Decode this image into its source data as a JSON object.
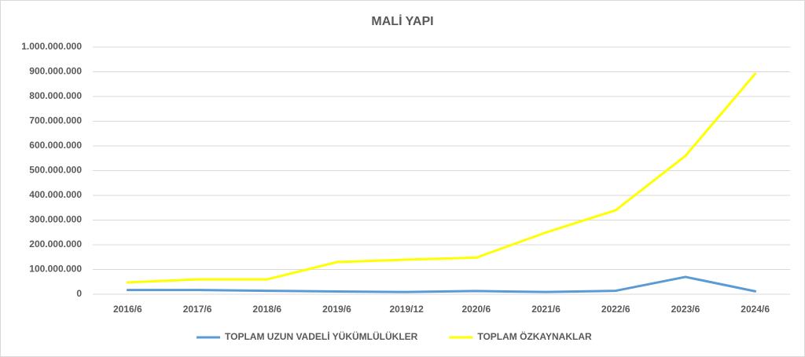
{
  "chart_data": {
    "type": "line",
    "title": "MALİ YAPI",
    "categories": [
      "2016/6",
      "2017/6",
      "2018/6",
      "2019/6",
      "2019/12",
      "2020/6",
      "2021/6",
      "2022/6",
      "2023/6",
      "2024/6"
    ],
    "series": [
      {
        "name": "TOPLAM UZUN VADELİ YÜKÜMLÜLÜKLER",
        "color": "#5b9bd5",
        "values": [
          17000000,
          17000000,
          14000000,
          11000000,
          9000000,
          13000000,
          9000000,
          14000000,
          70000000,
          12000000
        ]
      },
      {
        "name": "TOPLAM ÖZKAYNAKLAR",
        "color": "#ffff00",
        "values": [
          48000000,
          60000000,
          60000000,
          130000000,
          140000000,
          148000000,
          250000000,
          340000000,
          560000000,
          892000000
        ]
      }
    ],
    "ylim": [
      0,
      1000000000
    ],
    "yticks": [
      0,
      {
        "value": 100000000,
        "label": "100.000.000"
      },
      {
        "value": 200000000,
        "label": "200.000.000"
      },
      {
        "value": 300000000,
        "label": "300.000.000"
      },
      {
        "value": 400000000,
        "label": "400.000.000"
      },
      {
        "value": 500000000,
        "label": "500.000.000"
      },
      {
        "value": 600000000,
        "label": "600.000.000"
      },
      {
        "value": 700000000,
        "label": "700.000.000"
      },
      {
        "value": 800000000,
        "label": "800.000.000"
      },
      {
        "value": 900000000,
        "label": "900.000.000"
      },
      {
        "value": 1000000000,
        "label": "1.000.000.000"
      }
    ],
    "grid": true,
    "legend": "bottom"
  }
}
